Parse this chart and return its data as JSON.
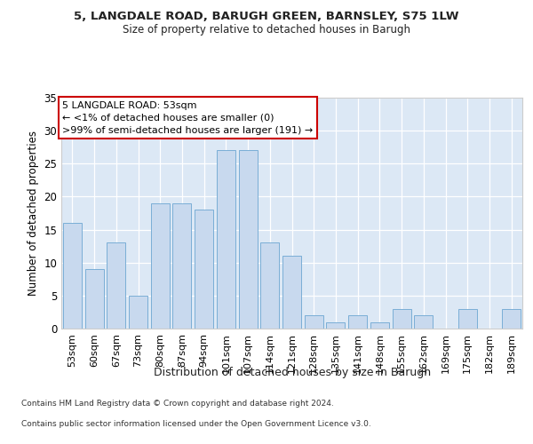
{
  "title1": "5, LANGDALE ROAD, BARUGH GREEN, BARNSLEY, S75 1LW",
  "title2": "Size of property relative to detached houses in Barugh",
  "xlabel": "Distribution of detached houses by size in Barugh",
  "ylabel": "Number of detached properties",
  "categories": [
    "53sqm",
    "60sqm",
    "67sqm",
    "73sqm",
    "80sqm",
    "87sqm",
    "94sqm",
    "101sqm",
    "107sqm",
    "114sqm",
    "121sqm",
    "128sqm",
    "135sqm",
    "141sqm",
    "148sqm",
    "155sqm",
    "162sqm",
    "169sqm",
    "175sqm",
    "182sqm",
    "189sqm"
  ],
  "values": [
    16,
    9,
    13,
    5,
    19,
    19,
    18,
    27,
    27,
    13,
    11,
    2,
    1,
    2,
    1,
    3,
    2,
    0,
    3,
    0,
    3
  ],
  "bar_color": "#c8d9ee",
  "bar_edge_color": "#7aaed6",
  "annotation_title": "5 LANGDALE ROAD: 53sqm",
  "annotation_line1": "← <1% of detached houses are smaller (0)",
  "annotation_line2": ">99% of semi-detached houses are larger (191) →",
  "annotation_box_color": "#ffffff",
  "annotation_box_edge": "#cc0000",
  "footer1": "Contains HM Land Registry data © Crown copyright and database right 2024.",
  "footer2": "Contains public sector information licensed under the Open Government Licence v3.0.",
  "ylim": [
    0,
    35
  ],
  "yticks": [
    0,
    5,
    10,
    15,
    20,
    25,
    30,
    35
  ],
  "background_color": "#ffffff",
  "plot_bg_color": "#dce8f5"
}
